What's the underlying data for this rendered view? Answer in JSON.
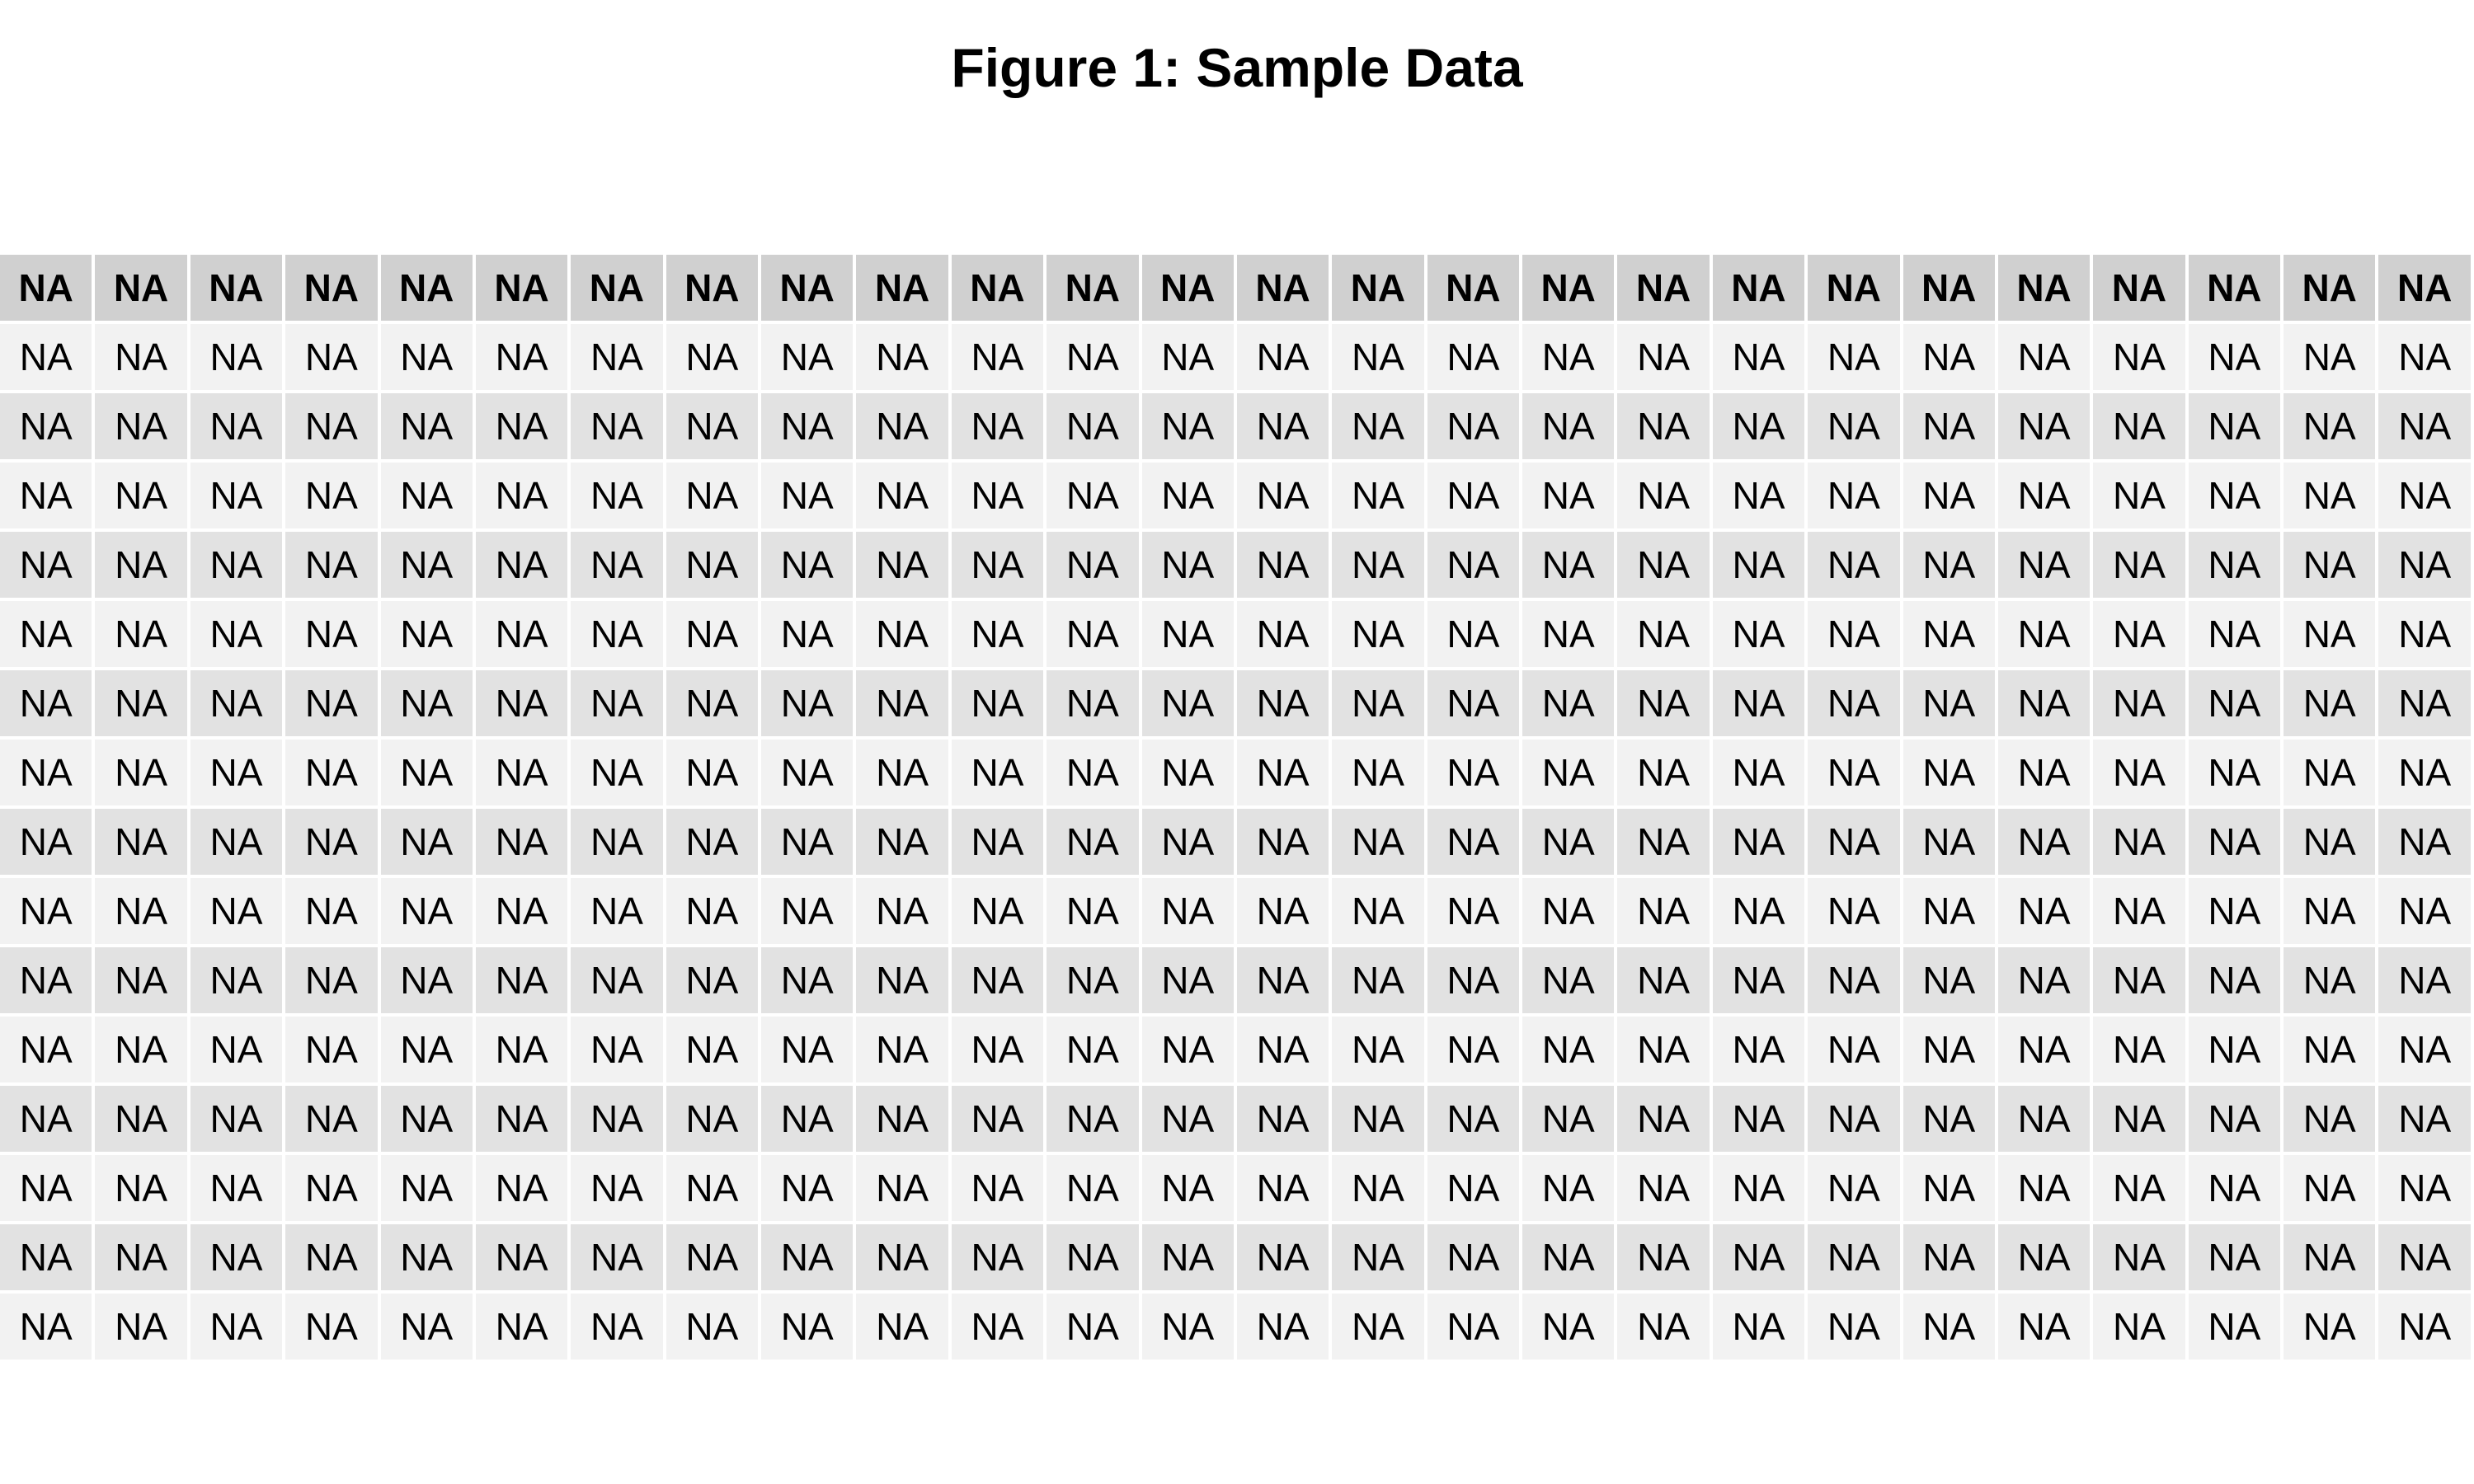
{
  "title": "Figure 1: Sample Data",
  "chart_data": {
    "type": "table",
    "title": "Figure 1: Sample Data",
    "columns": [
      "NA",
      "NA",
      "NA",
      "NA",
      "NA",
      "NA",
      "NA",
      "NA",
      "NA",
      "NA",
      "NA",
      "NA",
      "NA",
      "NA",
      "NA",
      "NA",
      "NA",
      "NA",
      "NA",
      "NA",
      "NA",
      "NA",
      "NA",
      "NA",
      "NA",
      "NA"
    ],
    "rows": [
      [
        "NA",
        "NA",
        "NA",
        "NA",
        "NA",
        "NA",
        "NA",
        "NA",
        "NA",
        "NA",
        "NA",
        "NA",
        "NA",
        "NA",
        "NA",
        "NA",
        "NA",
        "NA",
        "NA",
        "NA",
        "NA",
        "NA",
        "NA",
        "NA",
        "NA",
        "NA"
      ],
      [
        "NA",
        "NA",
        "NA",
        "NA",
        "NA",
        "NA",
        "NA",
        "NA",
        "NA",
        "NA",
        "NA",
        "NA",
        "NA",
        "NA",
        "NA",
        "NA",
        "NA",
        "NA",
        "NA",
        "NA",
        "NA",
        "NA",
        "NA",
        "NA",
        "NA",
        "NA"
      ],
      [
        "NA",
        "NA",
        "NA",
        "NA",
        "NA",
        "NA",
        "NA",
        "NA",
        "NA",
        "NA",
        "NA",
        "NA",
        "NA",
        "NA",
        "NA",
        "NA",
        "NA",
        "NA",
        "NA",
        "NA",
        "NA",
        "NA",
        "NA",
        "NA",
        "NA",
        "NA"
      ],
      [
        "NA",
        "NA",
        "NA",
        "NA",
        "NA",
        "NA",
        "NA",
        "NA",
        "NA",
        "NA",
        "NA",
        "NA",
        "NA",
        "NA",
        "NA",
        "NA",
        "NA",
        "NA",
        "NA",
        "NA",
        "NA",
        "NA",
        "NA",
        "NA",
        "NA",
        "NA"
      ],
      [
        "NA",
        "NA",
        "NA",
        "NA",
        "NA",
        "NA",
        "NA",
        "NA",
        "NA",
        "NA",
        "NA",
        "NA",
        "NA",
        "NA",
        "NA",
        "NA",
        "NA",
        "NA",
        "NA",
        "NA",
        "NA",
        "NA",
        "NA",
        "NA",
        "NA",
        "NA"
      ],
      [
        "NA",
        "NA",
        "NA",
        "NA",
        "NA",
        "NA",
        "NA",
        "NA",
        "NA",
        "NA",
        "NA",
        "NA",
        "NA",
        "NA",
        "NA",
        "NA",
        "NA",
        "NA",
        "NA",
        "NA",
        "NA",
        "NA",
        "NA",
        "NA",
        "NA",
        "NA"
      ],
      [
        "NA",
        "NA",
        "NA",
        "NA",
        "NA",
        "NA",
        "NA",
        "NA",
        "NA",
        "NA",
        "NA",
        "NA",
        "NA",
        "NA",
        "NA",
        "NA",
        "NA",
        "NA",
        "NA",
        "NA",
        "NA",
        "NA",
        "NA",
        "NA",
        "NA",
        "NA"
      ],
      [
        "NA",
        "NA",
        "NA",
        "NA",
        "NA",
        "NA",
        "NA",
        "NA",
        "NA",
        "NA",
        "NA",
        "NA",
        "NA",
        "NA",
        "NA",
        "NA",
        "NA",
        "NA",
        "NA",
        "NA",
        "NA",
        "NA",
        "NA",
        "NA",
        "NA",
        "NA"
      ],
      [
        "NA",
        "NA",
        "NA",
        "NA",
        "NA",
        "NA",
        "NA",
        "NA",
        "NA",
        "NA",
        "NA",
        "NA",
        "NA",
        "NA",
        "NA",
        "NA",
        "NA",
        "NA",
        "NA",
        "NA",
        "NA",
        "NA",
        "NA",
        "NA",
        "NA",
        "NA"
      ],
      [
        "NA",
        "NA",
        "NA",
        "NA",
        "NA",
        "NA",
        "NA",
        "NA",
        "NA",
        "NA",
        "NA",
        "NA",
        "NA",
        "NA",
        "NA",
        "NA",
        "NA",
        "NA",
        "NA",
        "NA",
        "NA",
        "NA",
        "NA",
        "NA",
        "NA",
        "NA"
      ],
      [
        "NA",
        "NA",
        "NA",
        "NA",
        "NA",
        "NA",
        "NA",
        "NA",
        "NA",
        "NA",
        "NA",
        "NA",
        "NA",
        "NA",
        "NA",
        "NA",
        "NA",
        "NA",
        "NA",
        "NA",
        "NA",
        "NA",
        "NA",
        "NA",
        "NA",
        "NA"
      ],
      [
        "NA",
        "NA",
        "NA",
        "NA",
        "NA",
        "NA",
        "NA",
        "NA",
        "NA",
        "NA",
        "NA",
        "NA",
        "NA",
        "NA",
        "NA",
        "NA",
        "NA",
        "NA",
        "NA",
        "NA",
        "NA",
        "NA",
        "NA",
        "NA",
        "NA",
        "NA"
      ],
      [
        "NA",
        "NA",
        "NA",
        "NA",
        "NA",
        "NA",
        "NA",
        "NA",
        "NA",
        "NA",
        "NA",
        "NA",
        "NA",
        "NA",
        "NA",
        "NA",
        "NA",
        "NA",
        "NA",
        "NA",
        "NA",
        "NA",
        "NA",
        "NA",
        "NA",
        "NA"
      ],
      [
        "NA",
        "NA",
        "NA",
        "NA",
        "NA",
        "NA",
        "NA",
        "NA",
        "NA",
        "NA",
        "NA",
        "NA",
        "NA",
        "NA",
        "NA",
        "NA",
        "NA",
        "NA",
        "NA",
        "NA",
        "NA",
        "NA",
        "NA",
        "NA",
        "NA",
        "NA"
      ],
      [
        "NA",
        "NA",
        "NA",
        "NA",
        "NA",
        "NA",
        "NA",
        "NA",
        "NA",
        "NA",
        "NA",
        "NA",
        "NA",
        "NA",
        "NA",
        "NA",
        "NA",
        "NA",
        "NA",
        "NA",
        "NA",
        "NA",
        "NA",
        "NA",
        "NA",
        "NA"
      ]
    ],
    "colors": {
      "header_bg": "#d0d0d0",
      "row_odd_bg": "#f2f2f2",
      "row_even_bg": "#e2e2e2",
      "grid": "#ffffff"
    }
  }
}
